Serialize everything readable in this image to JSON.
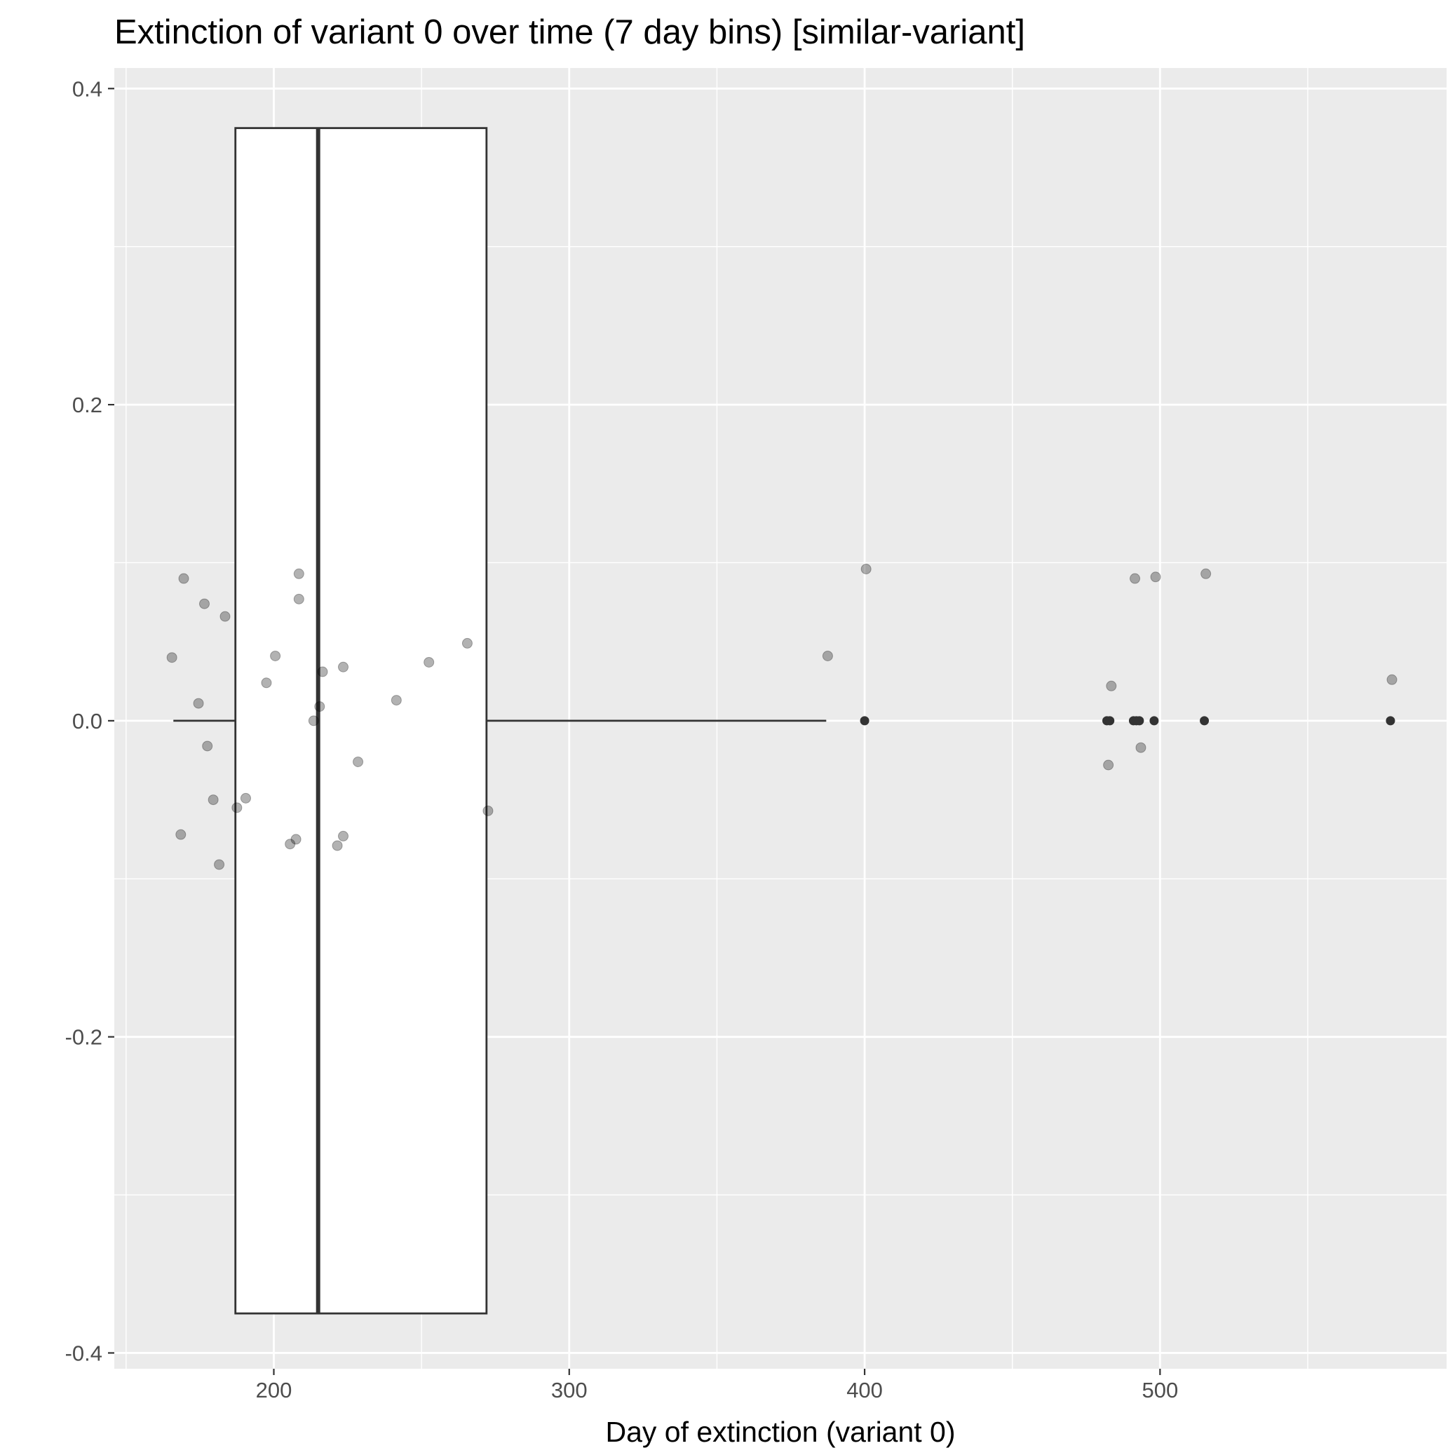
{
  "chart_data": {
    "type": "boxplot",
    "title": "Extinction of variant 0 over time (7 day bins) [similar-variant]",
    "xlabel": "Day of extinction (variant 0)",
    "ylabel": "",
    "xlim": [
      146,
      597
    ],
    "ylim": [
      -0.41,
      0.413
    ],
    "x_ticks": [
      200,
      300,
      400,
      500
    ],
    "x_tick_labels": [
      "200",
      "300",
      "400",
      "500"
    ],
    "y_ticks": [
      -0.4,
      -0.2,
      0.0,
      0.2,
      0.4
    ],
    "y_tick_labels": [
      "-0.4",
      "-0.2",
      "0.0",
      "0.2",
      "0.4"
    ],
    "grid": true,
    "box": {
      "whisker_low": 166,
      "q1": 187,
      "median": 215,
      "q3": 272,
      "whisker_high": 387,
      "box_y_min": -0.375,
      "box_y_max": 0.375,
      "outliers_x": [
        400,
        482,
        483,
        491,
        492,
        493,
        498,
        515,
        578
      ]
    },
    "points": [
      {
        "x": 165.5,
        "y": 0.04
      },
      {
        "x": 168.5,
        "y": -0.072
      },
      {
        "x": 169.5,
        "y": 0.09
      },
      {
        "x": 174.5,
        "y": 0.011
      },
      {
        "x": 176.5,
        "y": 0.074
      },
      {
        "x": 177.5,
        "y": -0.016
      },
      {
        "x": 179.5,
        "y": -0.05
      },
      {
        "x": 181.5,
        "y": -0.091
      },
      {
        "x": 183.5,
        "y": 0.066
      },
      {
        "x": 187.5,
        "y": -0.055
      },
      {
        "x": 190.5,
        "y": -0.049
      },
      {
        "x": 197.5,
        "y": 0.024
      },
      {
        "x": 200.5,
        "y": 0.041
      },
      {
        "x": 205.5,
        "y": -0.078
      },
      {
        "x": 207.5,
        "y": -0.075
      },
      {
        "x": 208.5,
        "y": 0.093
      },
      {
        "x": 208.5,
        "y": 0.077
      },
      {
        "x": 213.5,
        "y": 0.0
      },
      {
        "x": 215.5,
        "y": 0.009
      },
      {
        "x": 216.5,
        "y": 0.031
      },
      {
        "x": 221.5,
        "y": -0.079
      },
      {
        "x": 223.5,
        "y": 0.034
      },
      {
        "x": 223.5,
        "y": -0.073
      },
      {
        "x": 228.5,
        "y": -0.026
      },
      {
        "x": 241.5,
        "y": 0.013
      },
      {
        "x": 252.5,
        "y": 0.037
      },
      {
        "x": 265.5,
        "y": 0.049
      },
      {
        "x": 272.5,
        "y": -0.057
      },
      {
        "x": 387.5,
        "y": 0.041
      },
      {
        "x": 400.5,
        "y": 0.096
      },
      {
        "x": 482.5,
        "y": -0.028
      },
      {
        "x": 483.5,
        "y": 0.022
      },
      {
        "x": 491.5,
        "y": 0.09
      },
      {
        "x": 493.5,
        "y": -0.017
      },
      {
        "x": 498.5,
        "y": 0.091
      },
      {
        "x": 515.5,
        "y": 0.093
      },
      {
        "x": 578.5,
        "y": 0.026
      }
    ]
  }
}
